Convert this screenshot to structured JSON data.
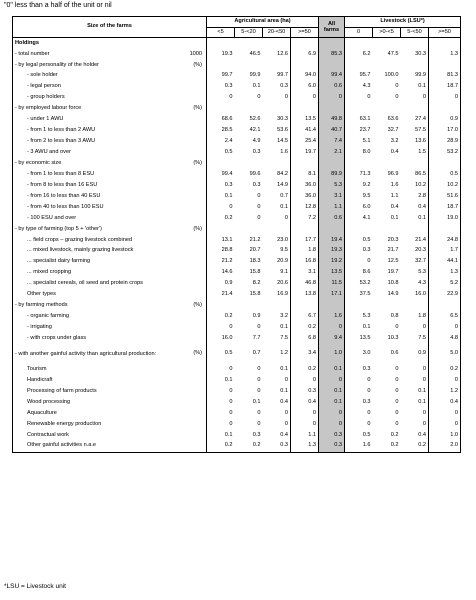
{
  "note": "\"0\" less than a half of the unit or nil",
  "header": {
    "size_label": "Size of the farms",
    "agri_label": "Agricultural area (ha)",
    "all_farms_label": "All farms",
    "livestock_label": "Livestock (LSU*)",
    "agri_cols": [
      "<5",
      "5-<20",
      "20-<50",
      ">=50"
    ],
    "livestock_cols": [
      "0",
      ">0-<5",
      "5-<50",
      ">=50"
    ]
  },
  "rows": [
    {
      "label": "Holdings",
      "type": "section",
      "unit": "",
      "values": [
        "",
        "",
        "",
        "",
        "",
        "",
        "",
        "",
        ""
      ]
    },
    {
      "label": "- total number",
      "unit": "1000",
      "values": [
        "19.3",
        "46.5",
        "12.6",
        "6.9",
        "85.3",
        "6.2",
        "47.5",
        "30.3",
        "1.3"
      ]
    },
    {
      "label": "- by legal personality of the holder",
      "unit": "(%)",
      "values": [
        "",
        "",
        "",
        "",
        "",
        "",
        "",
        "",
        ""
      ]
    },
    {
      "label": "- sole holder",
      "indent": true,
      "unit": "",
      "values": [
        "99.7",
        "99.9",
        "99.7",
        "94.0",
        "99.4",
        "95.7",
        "100.0",
        "99.9",
        "81.3"
      ]
    },
    {
      "label": "- legal person",
      "indent": true,
      "unit": "",
      "values": [
        "0.3",
        "0.1",
        "0.3",
        "6.0",
        "0.6",
        "4.3",
        "0",
        "0.1",
        "18.7"
      ]
    },
    {
      "label": "- group holders",
      "indent": true,
      "unit": "",
      "values": [
        "0",
        "0",
        "0",
        "0",
        "0",
        "0",
        "0",
        "0",
        "0"
      ]
    },
    {
      "label": "- by employed labour force",
      "unit": "(%)",
      "values": [
        "",
        "",
        "",
        "",
        "",
        "",
        "",
        "",
        ""
      ]
    },
    {
      "label": "- under 1 AWU",
      "indent": true,
      "unit": "",
      "values": [
        "68.6",
        "52.6",
        "30.3",
        "13.5",
        "49.8",
        "63.1",
        "63.6",
        "27.4",
        "0.9"
      ]
    },
    {
      "label": "- from 1 to less than 2 AWU",
      "indent": true,
      "unit": "",
      "values": [
        "28.5",
        "42.1",
        "53.6",
        "41.4",
        "40.7",
        "23.7",
        "32.7",
        "57.5",
        "17.0"
      ]
    },
    {
      "label": "- from 2 to less than 3 AWU",
      "indent": true,
      "unit": "",
      "values": [
        "2.4",
        "4.9",
        "14.5",
        "25.4",
        "7.4",
        "5.1",
        "3.2",
        "13.6",
        "28.9"
      ]
    },
    {
      "label": "- 3 AWU and over",
      "indent": true,
      "unit": "",
      "values": [
        "0.5",
        "0.3",
        "1.6",
        "19.7",
        "2.1",
        "8.0",
        "0.4",
        "1.5",
        "53.2"
      ]
    },
    {
      "label": "- by economic size",
      "unit": "(%)",
      "values": [
        "",
        "",
        "",
        "",
        "",
        "",
        "",
        "",
        ""
      ]
    },
    {
      "label": "- from 1 to less than 8 ESU",
      "indent": true,
      "unit": "",
      "values": [
        "99.4",
        "99.6",
        "84.2",
        "8.1",
        "89.9",
        "71.3",
        "96.9",
        "86.5",
        "0.5"
      ]
    },
    {
      "label": "- from 8 to less than 16 ESU",
      "indent": true,
      "unit": "",
      "values": [
        "0.3",
        "0.3",
        "14.9",
        "36.0",
        "5.3",
        "9.2",
        "1.6",
        "10.2",
        "10.2"
      ]
    },
    {
      "label": "- from 16 to less than 40 ESU",
      "indent": true,
      "unit": "",
      "values": [
        "0.1",
        "0",
        "0.7",
        "36.0",
        "3.1",
        "9.5",
        "1.1",
        "2.8",
        "51.6"
      ]
    },
    {
      "label": "- from 40 to less than 100 ESU",
      "indent": true,
      "unit": "",
      "values": [
        "0",
        "0",
        "0.1",
        "12.8",
        "1.1",
        "6.0",
        "0.4",
        "0.4",
        "18.7"
      ]
    },
    {
      "label": "- 100 ESU and over",
      "indent": true,
      "unit": "",
      "values": [
        "0.2",
        "0",
        "0",
        "7.2",
        "0.6",
        "4.1",
        "0.1",
        "0.1",
        "19.0"
      ]
    },
    {
      "label": "- by type of farming (top 5 + 'other')",
      "unit": "(%)",
      "values": [
        "",
        "",
        "",
        "",
        "",
        "",
        "",
        "",
        ""
      ]
    },
    {
      "label": "... field crops – grazing livestock combined",
      "indent": true,
      "unit": "",
      "values": [
        "13.1",
        "21.2",
        "23.0",
        "17.7",
        "19.4",
        "0.5",
        "20.3",
        "21.4",
        "24.8"
      ]
    },
    {
      "label": "... mixed livestock, mainly grazing livestock",
      "indent": true,
      "unit": "",
      "values": [
        "28.8",
        "20.7",
        "9.5",
        "1.8",
        "19.3",
        "0.3",
        "21.7",
        "20.3",
        "1.7"
      ]
    },
    {
      "label": "... specialist dairy farming",
      "indent": true,
      "unit": "",
      "values": [
        "21.2",
        "18.3",
        "20.9",
        "16.8",
        "19.2",
        "0",
        "12.5",
        "32.7",
        "44.1"
      ]
    },
    {
      "label": "... mixed cropping",
      "indent": true,
      "unit": "",
      "values": [
        "14.6",
        "15.8",
        "9.1",
        "3.1",
        "13.5",
        "8.6",
        "19.7",
        "5.3",
        "1.3"
      ]
    },
    {
      "label": "... specialist cereals, oil seed and protein crops",
      "indent": true,
      "unit": "",
      "values": [
        "0.9",
        "8.2",
        "20.6",
        "46.8",
        "11.5",
        "53.2",
        "10.8",
        "4.3",
        "5.2"
      ]
    },
    {
      "label": "Other types",
      "indent": true,
      "unit": "",
      "values": [
        "21.4",
        "15.8",
        "16.9",
        "13.8",
        "17.1",
        "37.5",
        "14.9",
        "16.0",
        "22.9"
      ]
    },
    {
      "label": "- by farming methods",
      "unit": "(%)",
      "values": [
        "",
        "",
        "",
        "",
        "",
        "",
        "",
        "",
        ""
      ]
    },
    {
      "label": "- organic farming",
      "indent": true,
      "unit": "",
      "values": [
        "0.2",
        "0.9",
        "3.2",
        "6.7",
        "1.6",
        "5.3",
        "0.8",
        "1.8",
        "6.5"
      ]
    },
    {
      "label": "- irrigating",
      "indent": true,
      "unit": "",
      "values": [
        "0",
        "0",
        "0.1",
        "0.2",
        "0",
        "0.1",
        "0",
        "0",
        "0"
      ]
    },
    {
      "label": "- with crops under glass",
      "indent": true,
      "unit": "",
      "values": [
        "16.0",
        "7.7",
        "7.5",
        "6.8",
        "9.4",
        "13.5",
        "10.3",
        "7.5",
        "4.8"
      ]
    },
    {
      "label": "- with another gainful activity than agricultural production:",
      "twoline": true,
      "unit": "(%)",
      "values": [
        "0.5",
        "0.7",
        "1.2",
        "3.4",
        "1.0",
        "3.0",
        "0.6",
        "0.9",
        "5.0"
      ]
    },
    {
      "label": "Tourism",
      "indent": true,
      "unit": "",
      "values": [
        "0",
        "0",
        "0.1",
        "0.2",
        "0.1",
        "0.3",
        "0",
        "0",
        "0.2"
      ]
    },
    {
      "label": "Handicraft",
      "indent": true,
      "unit": "",
      "values": [
        "0.1",
        "0",
        "0",
        "0",
        "0",
        "0",
        "0",
        "0",
        "0"
      ]
    },
    {
      "label": "Processing of farm products",
      "indent": true,
      "unit": "",
      "values": [
        "0",
        "0",
        "0.1",
        "0.3",
        "0.1",
        "0",
        "0",
        "0.1",
        "1.2"
      ]
    },
    {
      "label": "Wood processing",
      "indent": true,
      "unit": "",
      "values": [
        "0",
        "0.1",
        "0.4",
        "0.4",
        "0.1",
        "0.3",
        "0",
        "0.1",
        "0.4"
      ]
    },
    {
      "label": "Aquaculture",
      "indent": true,
      "unit": "",
      "values": [
        "0",
        "0",
        "0",
        "0",
        "0",
        "0",
        "0",
        "0",
        "0"
      ]
    },
    {
      "label": "Renewable energy production",
      "indent": true,
      "unit": "",
      "values": [
        "0",
        "0",
        "0",
        "0",
        "0",
        "0",
        "0",
        "0",
        "0"
      ]
    },
    {
      "label": "Contractual work",
      "indent": true,
      "unit": "",
      "values": [
        "0.1",
        "0.3",
        "0.4",
        "1.1",
        "0.3",
        "0.5",
        "0.2",
        "0.4",
        "1.0"
      ]
    },
    {
      "label": "Other gainful activities n.a.e",
      "indent": true,
      "unit": "",
      "values": [
        "0.2",
        "0.2",
        "0.3",
        "1.3",
        "0.3",
        "1.6",
        "0.2",
        "0.2",
        "2.0"
      ]
    }
  ],
  "footnote": "*LSU = Livestock unit"
}
